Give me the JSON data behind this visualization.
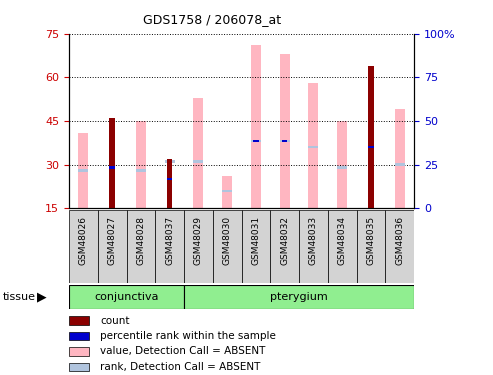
{
  "title": "GDS1758 / 206078_at",
  "samples": [
    "GSM48026",
    "GSM48027",
    "GSM48028",
    "GSM48037",
    "GSM48029",
    "GSM48030",
    "GSM48031",
    "GSM48032",
    "GSM48033",
    "GSM48034",
    "GSM48035",
    "GSM48036"
  ],
  "conjunctiva_count": 4,
  "ylim_left": [
    15,
    75
  ],
  "ylim_right": [
    0,
    100
  ],
  "yticks_left": [
    15,
    30,
    45,
    60,
    75
  ],
  "yticks_right": [
    0,
    25,
    50,
    75,
    100
  ],
  "pink_tops": [
    41,
    0,
    45,
    0,
    53,
    26,
    71,
    68,
    58,
    45,
    0,
    49
  ],
  "lb_positions": [
    28,
    0,
    28,
    31,
    31,
    21,
    38,
    38,
    36,
    29,
    0,
    30
  ],
  "dr_tops": [
    0,
    46,
    0,
    32,
    0,
    0,
    0,
    0,
    0,
    0,
    64,
    0
  ],
  "bsq_positions": [
    0,
    29,
    0,
    25,
    0,
    0,
    38,
    38,
    0,
    0,
    36,
    0
  ],
  "pink_color": "#ffb6c1",
  "lb_color": "#b0c4de",
  "dr_color": "#8b0000",
  "bsq_color": "#0000cd",
  "ylabel_left_color": "#cc0000",
  "ylabel_right_color": "#0000cc",
  "tissue_color": "#90ee90",
  "tick_bg_color": "#d3d3d3",
  "legend_items": [
    "count",
    "percentile rank within the sample",
    "value, Detection Call = ABSENT",
    "rank, Detection Call = ABSENT"
  ],
  "legend_colors": [
    "#8b0000",
    "#0000cd",
    "#ffb6c1",
    "#b0c4de"
  ]
}
